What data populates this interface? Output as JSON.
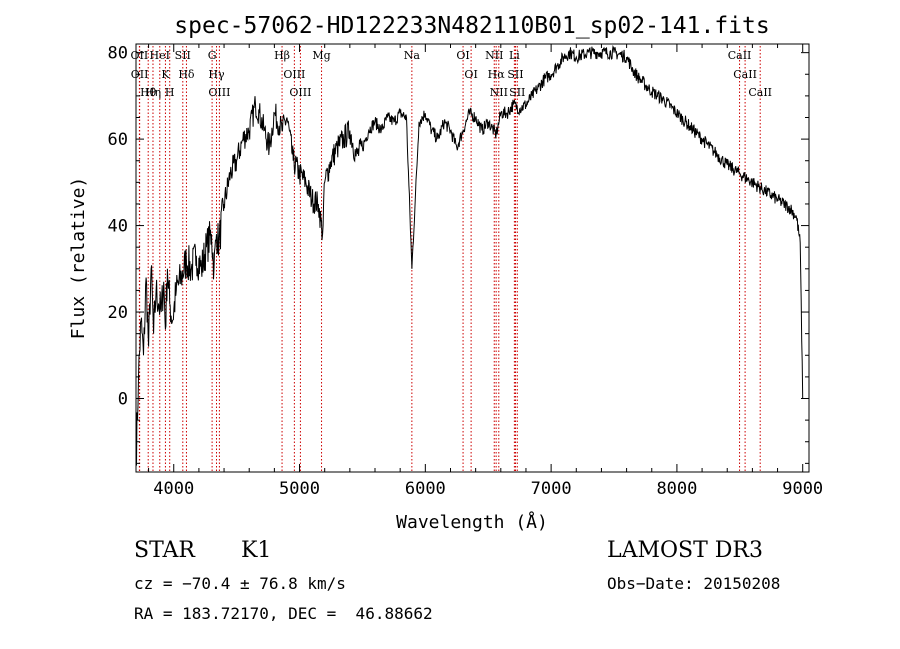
{
  "chart_data": {
    "type": "line",
    "title": "spec-57062-HD122233N482110B01_sp02-141.fits",
    "xlabel": "Wavelength (Å)",
    "ylabel": "Flux (relative)",
    "xlim": [
      3700,
      9050
    ],
    "ylim": [
      -17,
      82
    ],
    "x_ticks": [
      4000,
      5000,
      6000,
      7000,
      8000,
      9000
    ],
    "y_ticks": [
      0,
      20,
      40,
      60,
      80
    ],
    "grid": false,
    "legend": "none",
    "series": [
      {
        "x": [
          3700,
          3720,
          3740,
          3760,
          3780,
          3800,
          3820,
          3840,
          3860,
          3880,
          3900,
          3920,
          3934,
          3950,
          3968,
          3990,
          4020,
          4060,
          4101,
          4140,
          4180,
          4220,
          4260,
          4300,
          4320,
          4340,
          4360,
          4400,
          4450,
          4500,
          4550,
          4600,
          4650,
          4680,
          4720,
          4760,
          4800,
          4861,
          4900,
          4950,
          5000,
          5050,
          5100,
          5150,
          5183,
          5200,
          5250,
          5300,
          5350,
          5400,
          5450,
          5500,
          5550,
          5600,
          5650,
          5700,
          5750,
          5800,
          5850,
          5893,
          5950,
          6000,
          6050,
          6100,
          6150,
          6200,
          6250,
          6300,
          6350,
          6400,
          6450,
          6500,
          6563,
          6600,
          6650,
          6700,
          6750,
          6800,
          6850,
          6900,
          6950,
          7000,
          7050,
          7100,
          7150,
          7200,
          7300,
          7400,
          7500,
          7600,
          7650,
          7700,
          7800,
          7900,
          8000,
          8100,
          8200,
          8300,
          8400,
          8500,
          8600,
          8700,
          8800,
          8850,
          8900,
          8950,
          8980,
          9000
        ],
        "y": [
          -15,
          5,
          18,
          10,
          28,
          12,
          30,
          15,
          25,
          22,
          20,
          27,
          16,
          30,
          22,
          18,
          25,
          28,
          32,
          30,
          33,
          30,
          35,
          38,
          30,
          38,
          36,
          45,
          52,
          55,
          60,
          62,
          68,
          66,
          62,
          58,
          66,
          62,
          65,
          55,
          52,
          50,
          46,
          45,
          38,
          50,
          55,
          58,
          60,
          62,
          56,
          58,
          62,
          64,
          62,
          65,
          64,
          66,
          65,
          30,
          64,
          66,
          62,
          60,
          64,
          62,
          58,
          62,
          66,
          65,
          62,
          64,
          61,
          66,
          66,
          68,
          67,
          68,
          70,
          72,
          74,
          75,
          77,
          79,
          80,
          79,
          80,
          80,
          80,
          79,
          76,
          74,
          71,
          69,
          66,
          63,
          60,
          57,
          54,
          52,
          50,
          48,
          46,
          45,
          44,
          42,
          36,
          0
        ],
        "color": "#000000"
      }
    ],
    "lines": [
      {
        "label": "Hθ",
        "x": 3797
      },
      {
        "label": "OII",
        "x": 3727
      },
      {
        "label": "OII",
        "x": 3729
      },
      {
        "label": "K",
        "x": 3934
      },
      {
        "label": "HeI",
        "x": 3889
      },
      {
        "label": "Hη",
        "x": 3835
      },
      {
        "label": "H",
        "x": 3968
      },
      {
        "label": "SII",
        "x": 4072
      },
      {
        "label": "Hδ",
        "x": 4101
      },
      {
        "label": "OIII",
        "x": 4363
      },
      {
        "label": "Hγ",
        "x": 4340
      },
      {
        "label": "G",
        "x": 4305
      },
      {
        "label": "Hβ",
        "x": 4861
      },
      {
        "label": "OIII",
        "x": 5007
      },
      {
        "label": "OIII",
        "x": 4959
      },
      {
        "label": "Mg",
        "x": 5175
      },
      {
        "label": "Na",
        "x": 5893
      },
      {
        "label": "OI",
        "x": 6300
      },
      {
        "label": "OI",
        "x": 6364
      },
      {
        "label": "Hα",
        "x": 6563
      },
      {
        "label": "NII",
        "x": 6584
      },
      {
        "label": "NII",
        "x": 6548
      },
      {
        "label": "SII",
        "x": 6717
      },
      {
        "label": "SII",
        "x": 6731
      },
      {
        "label": "Li",
        "x": 6708
      },
      {
        "label": "CaII",
        "x": 8542
      },
      {
        "label": "CaII",
        "x": 8498
      },
      {
        "label": "CaII",
        "x": 8662
      }
    ]
  },
  "info": {
    "object_class": "STAR",
    "subclass": "K1",
    "survey": "LAMOST DR3",
    "cz": "cz = −70.4 ± 76.8 km/s",
    "obs_date": "Obs−Date: 20150208",
    "coords": "RA = 183.72170, DEC =  46.88662"
  }
}
